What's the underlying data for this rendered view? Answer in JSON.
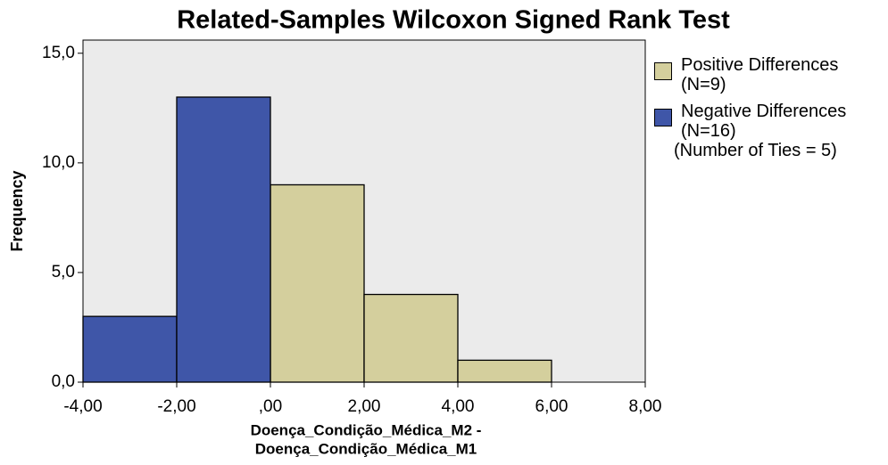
{
  "chart_data": {
    "type": "histogram",
    "title": "Related-Samples Wilcoxon Signed Rank Test",
    "xlabel": [
      "Doença_Condição_Médica_M2 -",
      "Doença_Condição_Médica_M1"
    ],
    "ylabel": "Frequency",
    "bins": [
      -4,
      -2,
      0,
      2,
      4,
      6
    ],
    "series": [
      {
        "name": "Positive Differences (N=9)",
        "color": "#d4cf9d",
        "values": [
          null,
          null,
          9,
          4,
          1
        ]
      },
      {
        "name": "Negative Differences (N=16)",
        "color": "#3f56a8",
        "values": [
          3,
          13,
          null,
          null,
          null
        ]
      }
    ],
    "annotation": "(Number of Ties = 5)",
    "xlim": [
      -4,
      8
    ],
    "xticks": [
      {
        "value": -4,
        "label": "-4,00"
      },
      {
        "value": -2,
        "label": "-2,00"
      },
      {
        "value": 0,
        "label": ",00"
      },
      {
        "value": 2,
        "label": "2,00"
      },
      {
        "value": 4,
        "label": "4,00"
      },
      {
        "value": 6,
        "label": "6,00"
      },
      {
        "value": 8,
        "label": "8,00"
      }
    ],
    "ylim": [
      0,
      15.6
    ],
    "yticks": [
      {
        "value": 0,
        "label": "0,0"
      },
      {
        "value": 5,
        "label": "5,0"
      },
      {
        "value": 10,
        "label": "10,0"
      },
      {
        "value": 15,
        "label": "15,0"
      }
    ],
    "legend": "right"
  }
}
